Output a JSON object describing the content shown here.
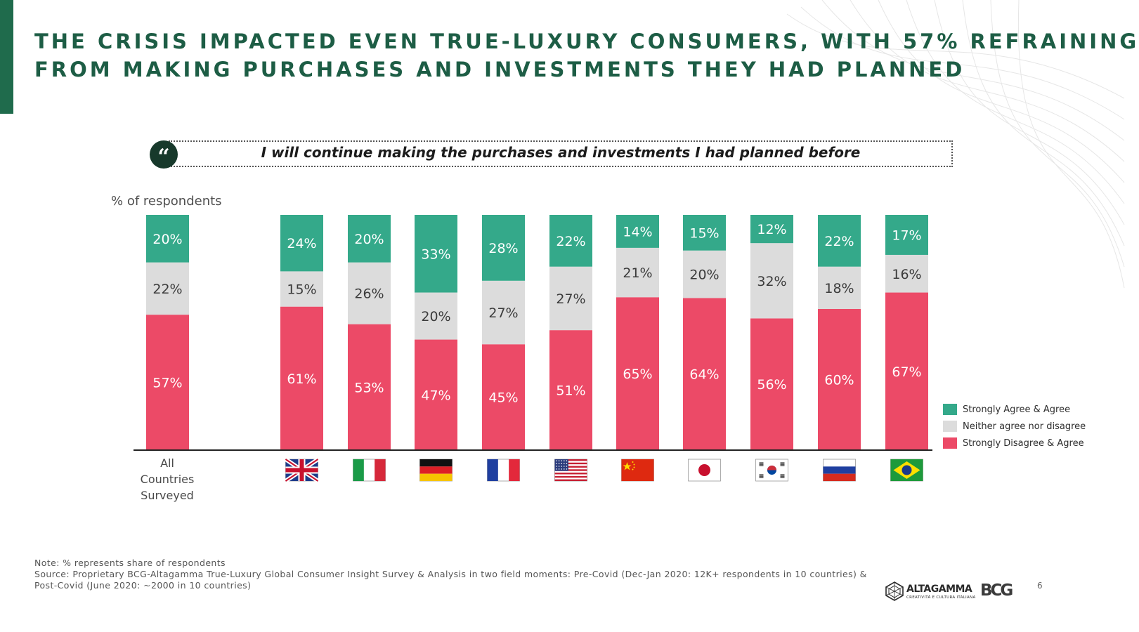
{
  "slide": {
    "title_line1": "THE CRISIS IMPACTED EVEN TRUE-LUXURY CONSUMERS, WITH 57% REFRAINING",
    "title_line2": "FROM MAKING PURCHASES AND INVESTMENTS THEY HAD PLANNED",
    "quote_mark": "“",
    "quote": "I will continue making the purchases and investments I had planned before",
    "page_number": "6"
  },
  "chart_data": {
    "type": "bar",
    "stacked": true,
    "ylabel": "% of respondents",
    "ylim": [
      0,
      100
    ],
    "categories": [
      "All Countries Surveyed",
      "United Kingdom",
      "Italy",
      "Germany",
      "France",
      "United States",
      "China",
      "Japan",
      "South Korea",
      "Russia",
      "Brazil"
    ],
    "category_labels": {
      "all": [
        "All",
        "Countries",
        "Surveyed"
      ]
    },
    "series": [
      {
        "name": "Strongly Disagree & Agree",
        "color": "#ec4a67",
        "values": [
          57,
          61,
          53,
          47,
          45,
          51,
          65,
          64,
          56,
          60,
          67
        ]
      },
      {
        "name": "Neither agree nor disagree",
        "color": "#dcdcdc",
        "values": [
          22,
          15,
          26,
          20,
          27,
          27,
          21,
          20,
          32,
          18,
          16
        ]
      },
      {
        "name": "Strongly Agree & Agree",
        "color": "#34a98a",
        "values": [
          20,
          24,
          20,
          33,
          28,
          22,
          14,
          15,
          12,
          22,
          17
        ]
      }
    ],
    "value_format": "{v}%",
    "legend_position": "right",
    "legend_order": [
      "Strongly Agree & Agree",
      "Neither agree nor disagree",
      "Strongly Disagree & Agree"
    ],
    "flags": [
      "uk-flag-icon",
      "italy-flag-icon",
      "germany-flag-icon",
      "france-flag-icon",
      "usa-flag-icon",
      "china-flag-icon",
      "japan-flag-icon",
      "south-korea-flag-icon",
      "russia-flag-icon",
      "brazil-flag-icon"
    ],
    "grid": false
  },
  "legend": {
    "items": [
      {
        "label": "Strongly Agree & Agree",
        "color": "#34a98a"
      },
      {
        "label": "Neither agree nor disagree",
        "color": "#dcdcdc"
      },
      {
        "label": "Strongly Disagree & Agree",
        "color": "#ec4a67"
      }
    ]
  },
  "footnote": {
    "note": "Note: % represents share of respondents",
    "source": "Source: Proprietary BCG-Altagamma True-Luxury Global Consumer Insight Survey & Analysis in two field moments: Pre-Covid (Dec-Jan 2020: 12K+ respondents in 10 countries) & Post-Covid (June 2020: ~2000 in 10 countries)"
  },
  "logos": {
    "altagamma": "ALTAGAMMA",
    "altagamma_sub": "CREATIVITÀ E CULTURA ITALIANA",
    "bcg": "BCG"
  },
  "colors": {
    "brand_green": "#1d5d45",
    "accent_bar": "#1f6b4c"
  }
}
